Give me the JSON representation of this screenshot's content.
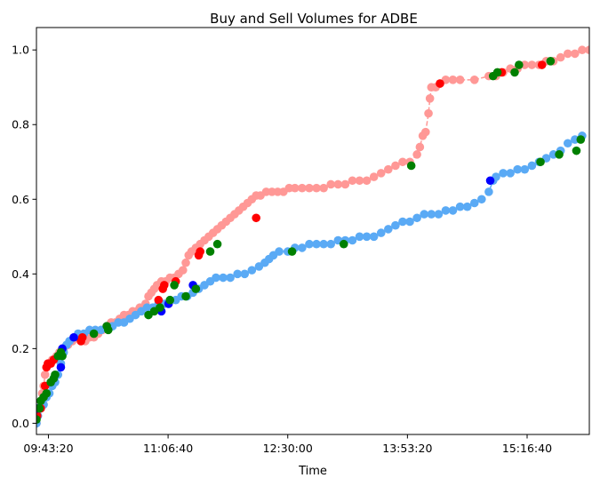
{
  "chart_data": {
    "type": "scatter",
    "title": "Buy and Sell Volumes for ADBE",
    "xlabel": "Time",
    "ylabel": "",
    "xlim": [
      "09:35:00",
      "16:00:00"
    ],
    "ylim": [
      -0.03,
      1.06
    ],
    "x_ticks": [
      {
        "value": "09:43:20",
        "label": "09:43:20"
      },
      {
        "value": "11:06:40",
        "label": "11:06:40"
      },
      {
        "value": "12:30:00",
        "label": "12:30:00"
      },
      {
        "value": "13:53:20",
        "label": "13:53:20"
      },
      {
        "value": "15:16:40",
        "label": "15:16:40"
      }
    ],
    "y_ticks": [
      {
        "value": 0.0,
        "label": "0.0"
      },
      {
        "value": 0.2,
        "label": "0.2"
      },
      {
        "value": 0.4,
        "label": "0.4"
      },
      {
        "value": 0.6,
        "label": "0.6"
      },
      {
        "value": 0.8,
        "label": "0.8"
      },
      {
        "value": 1.0,
        "label": "1.0"
      }
    ],
    "grid": false,
    "legend": "none",
    "series": [
      {
        "role": "sell",
        "color": "#ff9896",
        "line_style": "dashed",
        "points": [
          [
            "09:35:00",
            0.0
          ],
          [
            "09:36:00",
            0.02
          ],
          [
            "09:37:00",
            0.04
          ],
          [
            "09:38:00",
            0.06
          ],
          [
            "09:39:00",
            0.08
          ],
          [
            "09:40:00",
            0.1
          ],
          [
            "09:41:00",
            0.13
          ],
          [
            "09:42:00",
            0.15
          ],
          [
            "09:44:00",
            0.16
          ],
          [
            "09:46:00",
            0.17
          ],
          [
            "09:49:00",
            0.18
          ],
          [
            "09:51:00",
            0.19
          ],
          [
            "09:54:00",
            0.2
          ],
          [
            "09:57:00",
            0.21
          ],
          [
            "10:00:00",
            0.22
          ],
          [
            "10:03:00",
            0.23
          ],
          [
            "10:06:00",
            0.23
          ],
          [
            "10:09:00",
            0.22
          ],
          [
            "10:12:00",
            0.23
          ],
          [
            "10:15:00",
            0.23
          ],
          [
            "10:18:00",
            0.24
          ],
          [
            "10:21:00",
            0.25
          ],
          [
            "10:24:00",
            0.26
          ],
          [
            "10:27:00",
            0.27
          ],
          [
            "10:30:00",
            0.27
          ],
          [
            "10:33:00",
            0.28
          ],
          [
            "10:36:00",
            0.29
          ],
          [
            "10:39:00",
            0.29
          ],
          [
            "10:42:00",
            0.3
          ],
          [
            "10:45:00",
            0.3
          ],
          [
            "10:47:00",
            0.31
          ],
          [
            "10:49:00",
            0.31
          ],
          [
            "10:51:00",
            0.32
          ],
          [
            "10:53:00",
            0.34
          ],
          [
            "10:55:00",
            0.35
          ],
          [
            "10:57:00",
            0.36
          ],
          [
            "10:59:00",
            0.37
          ],
          [
            "11:02:00",
            0.38
          ],
          [
            "11:05:00",
            0.38
          ],
          [
            "11:08:00",
            0.39
          ],
          [
            "11:11:00",
            0.39
          ],
          [
            "11:14:00",
            0.4
          ],
          [
            "11:17:00",
            0.41
          ],
          [
            "11:19:00",
            0.43
          ],
          [
            "11:21:00",
            0.45
          ],
          [
            "11:23:00",
            0.46
          ],
          [
            "11:26:00",
            0.47
          ],
          [
            "11:29:00",
            0.48
          ],
          [
            "11:32:00",
            0.49
          ],
          [
            "11:35:00",
            0.5
          ],
          [
            "11:38:00",
            0.51
          ],
          [
            "11:41:00",
            0.52
          ],
          [
            "11:44:00",
            0.53
          ],
          [
            "11:47:00",
            0.54
          ],
          [
            "11:50:00",
            0.55
          ],
          [
            "11:53:00",
            0.56
          ],
          [
            "11:56:00",
            0.57
          ],
          [
            "11:59:00",
            0.58
          ],
          [
            "12:02:00",
            0.59
          ],
          [
            "12:05:00",
            0.6
          ],
          [
            "12:08:00",
            0.61
          ],
          [
            "12:11:00",
            0.61
          ],
          [
            "12:15:00",
            0.62
          ],
          [
            "12:19:00",
            0.62
          ],
          [
            "12:23:00",
            0.62
          ],
          [
            "12:27:00",
            0.62
          ],
          [
            "12:31:00",
            0.63
          ],
          [
            "12:35:00",
            0.63
          ],
          [
            "12:40:00",
            0.63
          ],
          [
            "12:45:00",
            0.63
          ],
          [
            "12:50:00",
            0.63
          ],
          [
            "12:55:00",
            0.63
          ],
          [
            "13:00:00",
            0.64
          ],
          [
            "13:05:00",
            0.64
          ],
          [
            "13:10:00",
            0.64
          ],
          [
            "13:15:00",
            0.65
          ],
          [
            "13:20:00",
            0.65
          ],
          [
            "13:25:00",
            0.65
          ],
          [
            "13:30:00",
            0.66
          ],
          [
            "13:35:00",
            0.67
          ],
          [
            "13:40:00",
            0.68
          ],
          [
            "13:45:00",
            0.69
          ],
          [
            "13:50:00",
            0.7
          ],
          [
            "13:55:00",
            0.7
          ],
          [
            "14:00:00",
            0.72
          ],
          [
            "14:02:00",
            0.74
          ],
          [
            "14:04:00",
            0.77
          ],
          [
            "14:06:00",
            0.78
          ],
          [
            "14:08:00",
            0.83
          ],
          [
            "14:09:00",
            0.87
          ],
          [
            "14:10:00",
            0.9
          ],
          [
            "14:13:00",
            0.9
          ],
          [
            "14:16:00",
            0.91
          ],
          [
            "14:20:00",
            0.92
          ],
          [
            "14:25:00",
            0.92
          ],
          [
            "14:30:00",
            0.92
          ],
          [
            "14:40:00",
            0.92
          ],
          [
            "14:50:00",
            0.93
          ],
          [
            "14:55:00",
            0.93
          ],
          [
            "15:00:00",
            0.94
          ],
          [
            "15:05:00",
            0.95
          ],
          [
            "15:10:00",
            0.95
          ],
          [
            "15:15:00",
            0.96
          ],
          [
            "15:20:00",
            0.96
          ],
          [
            "15:25:00",
            0.96
          ],
          [
            "15:30:00",
            0.97
          ],
          [
            "15:35:00",
            0.97
          ],
          [
            "15:40:00",
            0.98
          ],
          [
            "15:45:00",
            0.99
          ],
          [
            "15:50:00",
            0.99
          ],
          [
            "15:55:00",
            1.0
          ],
          [
            "16:00:00",
            1.0
          ]
        ]
      },
      {
        "role": "buy",
        "color": "#5aaaf5",
        "line_style": "dashed",
        "points": [
          [
            "09:35:00",
            0.0
          ],
          [
            "09:36:00",
            0.02
          ],
          [
            "09:38:00",
            0.04
          ],
          [
            "09:40:00",
            0.05
          ],
          [
            "09:42:00",
            0.07
          ],
          [
            "09:44:00",
            0.08
          ],
          [
            "09:46:00",
            0.1
          ],
          [
            "09:48:00",
            0.11
          ],
          [
            "09:50:00",
            0.13
          ],
          [
            "09:52:00",
            0.16
          ],
          [
            "09:54:00",
            0.19
          ],
          [
            "09:56:00",
            0.21
          ],
          [
            "09:58:00",
            0.22
          ],
          [
            "10:01:00",
            0.23
          ],
          [
            "10:04:00",
            0.24
          ],
          [
            "10:08:00",
            0.24
          ],
          [
            "10:12:00",
            0.25
          ],
          [
            "10:16:00",
            0.25
          ],
          [
            "10:20:00",
            0.25
          ],
          [
            "10:24:00",
            0.26
          ],
          [
            "10:28:00",
            0.26
          ],
          [
            "10:32:00",
            0.27
          ],
          [
            "10:36:00",
            0.27
          ],
          [
            "10:40:00",
            0.28
          ],
          [
            "10:44:00",
            0.29
          ],
          [
            "10:48:00",
            0.3
          ],
          [
            "10:52:00",
            0.31
          ],
          [
            "10:56:00",
            0.31
          ],
          [
            "11:00:00",
            0.32
          ],
          [
            "11:04:00",
            0.32
          ],
          [
            "11:08:00",
            0.33
          ],
          [
            "11:12:00",
            0.33
          ],
          [
            "11:16:00",
            0.34
          ],
          [
            "11:20:00",
            0.34
          ],
          [
            "11:24:00",
            0.35
          ],
          [
            "11:28:00",
            0.36
          ],
          [
            "11:32:00",
            0.37
          ],
          [
            "11:36:00",
            0.38
          ],
          [
            "11:40:00",
            0.39
          ],
          [
            "11:45:00",
            0.39
          ],
          [
            "11:50:00",
            0.39
          ],
          [
            "11:55:00",
            0.4
          ],
          [
            "12:00:00",
            0.4
          ],
          [
            "12:05:00",
            0.41
          ],
          [
            "12:10:00",
            0.42
          ],
          [
            "12:14:00",
            0.43
          ],
          [
            "12:17:00",
            0.44
          ],
          [
            "12:20:00",
            0.45
          ],
          [
            "12:24:00",
            0.46
          ],
          [
            "12:30:00",
            0.46
          ],
          [
            "12:35:00",
            0.47
          ],
          [
            "12:40:00",
            0.47
          ],
          [
            "12:45:00",
            0.48
          ],
          [
            "12:50:00",
            0.48
          ],
          [
            "12:55:00",
            0.48
          ],
          [
            "13:00:00",
            0.48
          ],
          [
            "13:05:00",
            0.49
          ],
          [
            "13:10:00",
            0.49
          ],
          [
            "13:15:00",
            0.49
          ],
          [
            "13:20:00",
            0.5
          ],
          [
            "13:25:00",
            0.5
          ],
          [
            "13:30:00",
            0.5
          ],
          [
            "13:35:00",
            0.51
          ],
          [
            "13:40:00",
            0.52
          ],
          [
            "13:45:00",
            0.53
          ],
          [
            "13:50:00",
            0.54
          ],
          [
            "13:55:00",
            0.54
          ],
          [
            "14:00:00",
            0.55
          ],
          [
            "14:05:00",
            0.56
          ],
          [
            "14:10:00",
            0.56
          ],
          [
            "14:15:00",
            0.56
          ],
          [
            "14:20:00",
            0.57
          ],
          [
            "14:25:00",
            0.57
          ],
          [
            "14:30:00",
            0.58
          ],
          [
            "14:35:00",
            0.58
          ],
          [
            "14:40:00",
            0.59
          ],
          [
            "14:45:00",
            0.6
          ],
          [
            "14:50:00",
            0.62
          ],
          [
            "14:53:00",
            0.65
          ],
          [
            "14:55:00",
            0.66
          ],
          [
            "15:00:00",
            0.67
          ],
          [
            "15:05:00",
            0.67
          ],
          [
            "15:10:00",
            0.68
          ],
          [
            "15:15:00",
            0.68
          ],
          [
            "15:20:00",
            0.69
          ],
          [
            "15:25:00",
            0.7
          ],
          [
            "15:30:00",
            0.71
          ],
          [
            "15:35:00",
            0.72
          ],
          [
            "15:40:00",
            0.73
          ],
          [
            "15:45:00",
            0.75
          ],
          [
            "15:50:00",
            0.76
          ],
          [
            "15:55:00",
            0.77
          ]
        ]
      },
      {
        "role": "sell-highlight",
        "color": "#ff0000",
        "line_style": "none",
        "points": [
          [
            "09:35:30",
            0.02
          ],
          [
            "09:38:00",
            0.04
          ],
          [
            "09:41:00",
            0.1
          ],
          [
            "09:42:00",
            0.15
          ],
          [
            "09:43:00",
            0.16
          ],
          [
            "09:45:00",
            0.16
          ],
          [
            "09:47:00",
            0.17
          ],
          [
            "10:06:00",
            0.22
          ],
          [
            "10:07:00",
            0.23
          ],
          [
            "11:00:00",
            0.33
          ],
          [
            "11:03:00",
            0.36
          ],
          [
            "11:04:00",
            0.37
          ],
          [
            "11:12:00",
            0.38
          ],
          [
            "11:28:00",
            0.45
          ],
          [
            "11:29:00",
            0.46
          ],
          [
            "12:08:00",
            0.55
          ],
          [
            "14:16:00",
            0.91
          ],
          [
            "14:59:00",
            0.94
          ],
          [
            "15:27:00",
            0.96
          ]
        ]
      },
      {
        "role": "buy-highlight",
        "color": "#0000ff",
        "line_style": "none",
        "points": [
          [
            "09:36:00",
            0.04
          ],
          [
            "09:52:00",
            0.15
          ],
          [
            "09:53:00",
            0.2
          ],
          [
            "10:01:00",
            0.23
          ],
          [
            "11:02:00",
            0.3
          ],
          [
            "11:07:00",
            0.32
          ],
          [
            "11:24:00",
            0.37
          ],
          [
            "14:51:00",
            0.65
          ]
        ]
      },
      {
        "role": "green-markers",
        "color": "#008000",
        "line_style": "none",
        "points": [
          [
            "09:35:00",
            0.01
          ],
          [
            "09:37:00",
            0.04
          ],
          [
            "09:38:00",
            0.06
          ],
          [
            "09:40:00",
            0.07
          ],
          [
            "09:42:00",
            0.08
          ],
          [
            "09:45:00",
            0.11
          ],
          [
            "09:47:00",
            0.12
          ],
          [
            "09:48:00",
            0.13
          ],
          [
            "09:50:00",
            0.18
          ],
          [
            "09:52:00",
            0.19
          ],
          [
            "09:53:00",
            0.18
          ],
          [
            "10:15:00",
            0.24
          ],
          [
            "10:24:00",
            0.26
          ],
          [
            "10:25:00",
            0.25
          ],
          [
            "10:53:00",
            0.29
          ],
          [
            "10:57:00",
            0.3
          ],
          [
            "11:01:00",
            0.31
          ],
          [
            "11:08:00",
            0.33
          ],
          [
            "11:11:00",
            0.37
          ],
          [
            "11:19:00",
            0.34
          ],
          [
            "11:26:00",
            0.36
          ],
          [
            "11:36:00",
            0.46
          ],
          [
            "11:41:00",
            0.48
          ],
          [
            "12:33:00",
            0.46
          ],
          [
            "13:09:00",
            0.48
          ],
          [
            "13:56:00",
            0.69
          ],
          [
            "14:53:00",
            0.93
          ],
          [
            "14:56:00",
            0.94
          ],
          [
            "15:08:00",
            0.94
          ],
          [
            "15:11:00",
            0.96
          ],
          [
            "15:26:00",
            0.7
          ],
          [
            "15:33:00",
            0.97
          ],
          [
            "15:39:00",
            0.72
          ],
          [
            "15:51:00",
            0.73
          ],
          [
            "15:54:00",
            0.76
          ]
        ]
      }
    ]
  }
}
